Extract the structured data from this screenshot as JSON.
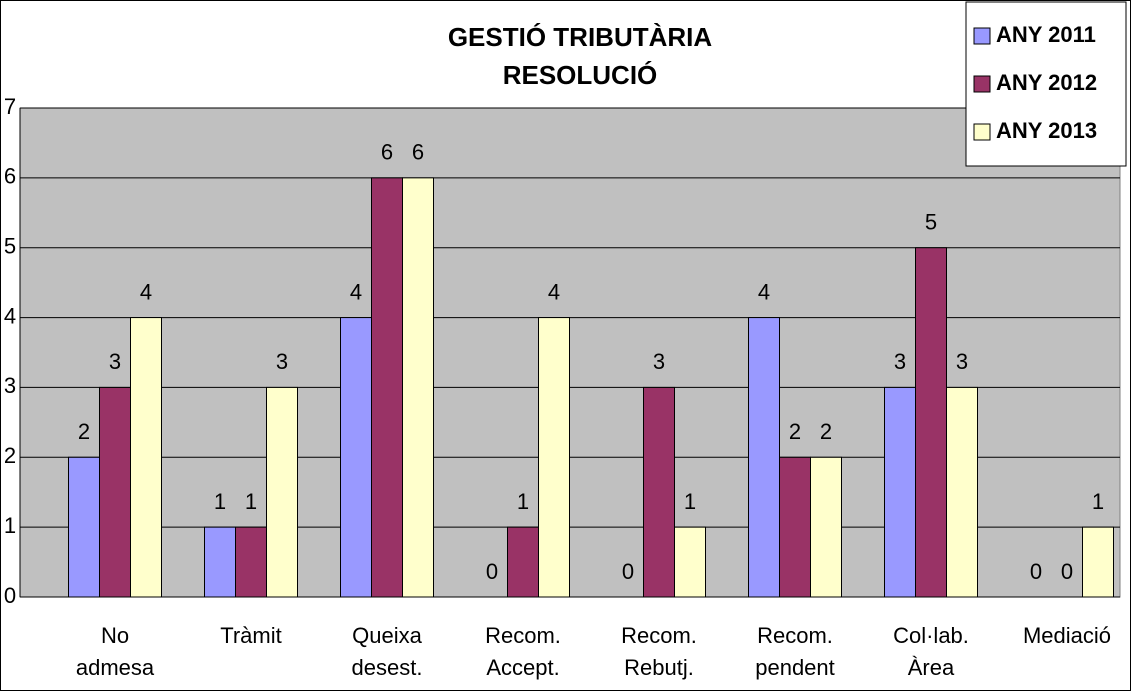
{
  "chart_data": {
    "type": "bar",
    "title": "GESTIÓ TRIBUTÀRIA\nRESOLUCIÓ",
    "categories": [
      "No\nadmesa",
      "Tràmit",
      "Queixa\ndesest.",
      "Recom.\nAccept.",
      "Recom.\nRebutj.",
      "Recom.\npendent",
      "Col·lab.\nÀrea",
      "Mediació"
    ],
    "series": [
      {
        "name": "ANY 2011",
        "color": "#9999ff",
        "values": [
          2,
          1,
          4,
          0,
          0,
          4,
          3,
          0
        ]
      },
      {
        "name": "ANY 2012",
        "color": "#993366",
        "values": [
          3,
          1,
          6,
          1,
          3,
          2,
          5,
          0
        ]
      },
      {
        "name": "ANY 2013",
        "color": "#ffffcc",
        "values": [
          4,
          3,
          6,
          4,
          1,
          2,
          3,
          1
        ]
      }
    ],
    "ylim": [
      0,
      7
    ],
    "yticks": [
      0,
      1,
      2,
      3,
      4,
      5,
      6,
      7
    ],
    "grid": true,
    "legend": "top-right"
  }
}
